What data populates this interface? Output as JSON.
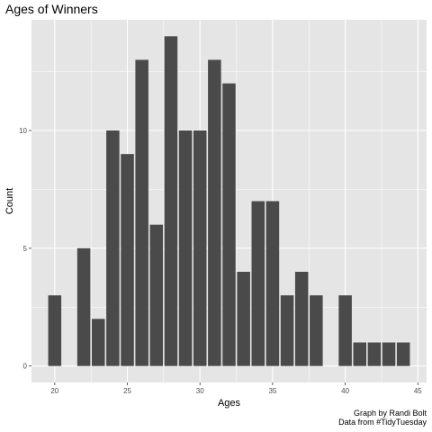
{
  "chart_data": {
    "type": "bar",
    "title": "Ages of Winners",
    "xlabel": "Ages",
    "ylabel": "Count",
    "x": [
      20,
      22,
      23,
      24,
      25,
      26,
      27,
      28,
      29,
      30,
      31,
      32,
      33,
      34,
      35,
      36,
      37,
      38,
      40,
      41,
      42,
      43,
      44
    ],
    "values": [
      3,
      5,
      2,
      10,
      9,
      13,
      6,
      14,
      10,
      10,
      13,
      12,
      4,
      7,
      7,
      3,
      4,
      3,
      3,
      1,
      1,
      1,
      1
    ],
    "xlim": [
      18.4,
      45.6
    ],
    "ylim": [
      -0.7,
      14.7
    ],
    "xticks": [
      20,
      25,
      30,
      35,
      40,
      45
    ],
    "yticks": [
      0,
      5,
      10
    ],
    "bar_color": "#4a4a4a",
    "panel_color": "#e5e5e5",
    "grid_color": "#ffffff",
    "grid": true
  },
  "caption": {
    "line1": "Graph by Randi Bolt",
    "line2": "Data from #TidyTuesday"
  }
}
